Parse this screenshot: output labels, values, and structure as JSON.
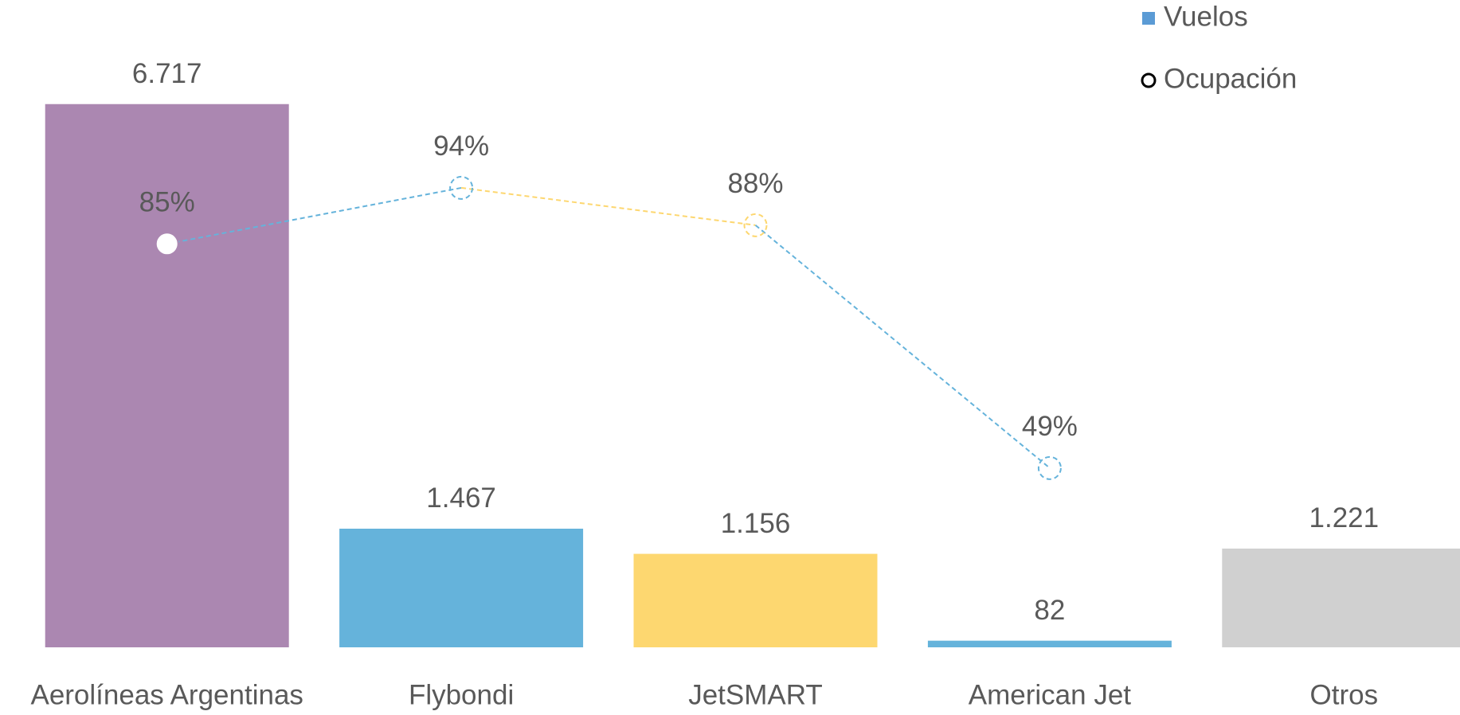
{
  "chart_data": {
    "type": "bar",
    "categories": [
      "Aerolíneas Argentinas",
      "Flybondi",
      "JetSMART",
      "American Jet",
      "Otros"
    ],
    "ylim": [
      0,
      7000
    ],
    "y2lim": [
      0,
      100
    ],
    "series": [
      {
        "name": "Vuelos",
        "type": "bar",
        "color": "#5b9bd5",
        "colors": [
          "#ab87b1",
          "#65b3db",
          "#fdd770",
          "#65b3db",
          "#d0d0d0"
        ],
        "values": [
          6717,
          1467,
          1156,
          82,
          1221
        ],
        "value_labels": [
          "6.717",
          "1.467",
          "1.156",
          "82",
          "1.221"
        ]
      },
      {
        "name": "Ocupación",
        "type": "line",
        "axis": "y2",
        "color": "#000000",
        "colors": [
          "#ab87b1",
          "#65b3db",
          "#fdd770",
          "#65b3db",
          null
        ],
        "values": [
          85,
          94,
          88,
          49,
          null
        ],
        "value_labels": [
          "85%",
          "94%",
          "88%",
          "49%",
          null
        ]
      }
    ],
    "legend": "top-right"
  }
}
